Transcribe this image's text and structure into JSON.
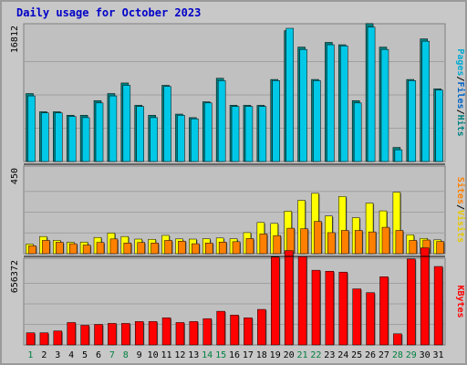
{
  "title": "Daily usage for October 2023",
  "colors": {
    "background": "#c8c8c8",
    "panel": "#c0c0c0",
    "title": "#0000c8",
    "weekday_label": "#0000c8",
    "weekend_label": "#008040",
    "hits": "#00c8e6",
    "files": "#008080",
    "pages": "#00aad2",
    "sites": "#ff8000",
    "visits": "#ffff00",
    "kbytes": "#ff0000",
    "divider": "#000000"
  },
  "panels": [
    {
      "id": "hits-files",
      "ytick_label": "16812",
      "ymax": 16812,
      "right_labels": [
        {
          "text": "Pages",
          "color": "#00aad2"
        },
        {
          "text": "/",
          "color": "#000000"
        },
        {
          "text": "Files",
          "color": "#0064c8"
        },
        {
          "text": "/",
          "color": "#000000"
        },
        {
          "text": "Hits",
          "color": "#008080"
        }
      ]
    },
    {
      "id": "visits-sites",
      "ytick_label": "450",
      "ymax": 450,
      "right_labels": [
        {
          "text": "Sites",
          "color": "#ff8000"
        },
        {
          "text": "/",
          "color": "#000000"
        },
        {
          "text": "Visits",
          "color": "#e6c800"
        }
      ]
    },
    {
      "id": "kbytes",
      "ytick_label": "656372",
      "ymax": 656372,
      "right_labels": [
        {
          "text": "KBytes",
          "color": "#ff0000"
        }
      ]
    }
  ],
  "chart_data": {
    "type": "bar",
    "title": "Daily usage for October 2023",
    "categories": [
      "1",
      "2",
      "3",
      "4",
      "5",
      "6",
      "7",
      "8",
      "9",
      "10",
      "11",
      "12",
      "13",
      "14",
      "15",
      "16",
      "17",
      "18",
      "19",
      "20",
      "21",
      "22",
      "23",
      "24",
      "25",
      "26",
      "27",
      "28",
      "29",
      "30",
      "31"
    ],
    "weekend_days": [
      "1",
      "7",
      "8",
      "14",
      "15",
      "21",
      "22",
      "28",
      "29"
    ],
    "series": [
      {
        "name": "Hits",
        "panel": "hits-files",
        "values": [
          8578,
          6281,
          6281,
          5836,
          5836,
          7688,
          8578,
          9911,
          7094,
          5836,
          9615,
          5985,
          5540,
          7539,
          10504,
          7094,
          7094,
          7094,
          10356,
          16516,
          14441,
          10356,
          15034,
          14737,
          7688,
          17405,
          14441,
          1779,
          10356,
          15479,
          9170
        ]
      },
      {
        "name": "Files",
        "panel": "hits-files",
        "values": [
          8280,
          6133,
          6133,
          5688,
          5540,
          7391,
          8280,
          9615,
          6946,
          5540,
          9467,
          5836,
          5392,
          7391,
          10208,
          6946,
          6946,
          6946,
          10208,
          16812,
          14145,
          10208,
          14737,
          14589,
          7391,
          16960,
          14145,
          1483,
          10208,
          15183,
          9022
        ]
      },
      {
        "name": "Visits",
        "panel": "visits-sites",
        "values": [
          52,
          93,
          72,
          62,
          63,
          88,
          112,
          93,
          79,
          78,
          99,
          80,
          79,
          81,
          85,
          81,
          114,
          169,
          164,
          230,
          289,
          327,
          204,
          310,
          195,
          274,
          232,
          333,
          102,
          83,
          75
        ]
      },
      {
        "name": "Sites",
        "panel": "visits-sites",
        "values": [
          43,
          72,
          62,
          54,
          47,
          61,
          80,
          58,
          61,
          58,
          72,
          68,
          54,
          58,
          63,
          65,
          82,
          107,
          98,
          138,
          135,
          175,
          114,
          126,
          126,
          118,
          143,
          126,
          72,
          74,
          66
        ]
      },
      {
        "name": "KBytes",
        "panel": "kbytes",
        "values": [
          97000,
          97000,
          112000,
          179000,
          157000,
          164000,
          172000,
          172000,
          187000,
          187000,
          217000,
          179000,
          187000,
          210000,
          269000,
          239000,
          217000,
          284000,
          702000,
          754000,
          709000,
          597000,
          589000,
          582000,
          448000,
          418000,
          545000,
          89000,
          687000,
          776000,
          627000
        ]
      }
    ],
    "ylim": {
      "hits-files": [
        0,
        16812
      ],
      "visits-sites": [
        0,
        450
      ],
      "kbytes": [
        0,
        656372
      ]
    }
  }
}
